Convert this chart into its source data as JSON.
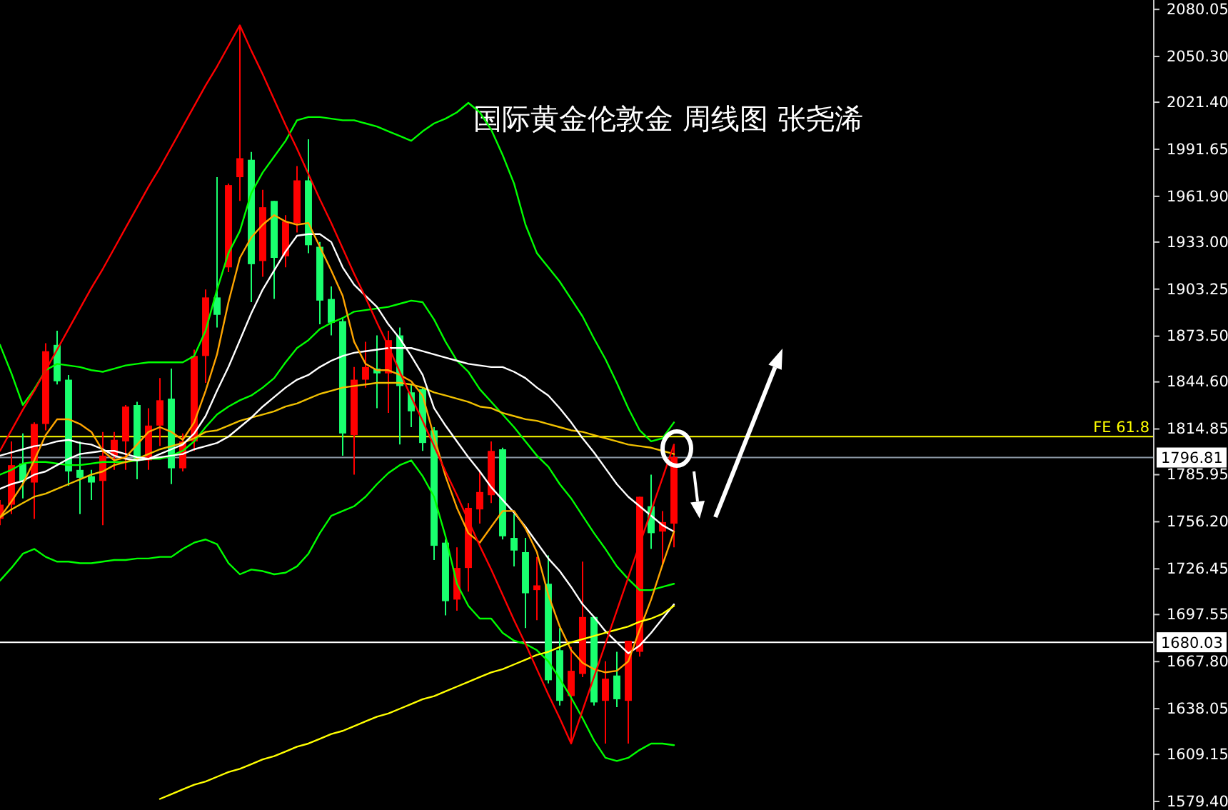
{
  "chart_data": {
    "type": "candlestick",
    "title": "国际黄金伦敦金 周线图 张尧浠",
    "categories": [
      null,
      null,
      null,
      null,
      null,
      null,
      null,
      null,
      null,
      null,
      null,
      null,
      null,
      null,
      null,
      null,
      null,
      null,
      null,
      null,
      null,
      null,
      null,
      null,
      null,
      null,
      null,
      null,
      null,
      null,
      null,
      null,
      null,
      null,
      null,
      null,
      null,
      null,
      null,
      null,
      null,
      null,
      null,
      null,
      null,
      null,
      null,
      null,
      null,
      null,
      null,
      null,
      null,
      null,
      null,
      null,
      null,
      null,
      null,
      null,
      null,
      null,
      null,
      null,
      null,
      null,
      null,
      null,
      null,
      null,
      null,
      null,
      null,
      null,
      null,
      null,
      null,
      null,
      null,
      null,
      null,
      null,
      null,
      null,
      null,
      null,
      null,
      null,
      null,
      null,
      null,
      null,
      null,
      null,
      null,
      null,
      null,
      null,
      null,
      null,
      null
    ],
    "ohlc": [
      [
        1758,
        1770,
        1754,
        1767
      ],
      [
        1767,
        1807,
        1761,
        1792
      ],
      [
        1793,
        1812,
        1771,
        1782
      ],
      [
        1781,
        1819,
        1758,
        1818
      ],
      [
        1818,
        1869,
        1814,
        1864
      ],
      [
        1868,
        1877,
        1843,
        1845
      ],
      [
        1846,
        1849,
        1779,
        1788
      ],
      [
        1789,
        1807,
        1761,
        1784
      ],
      [
        1785,
        1789,
        1770,
        1781
      ],
      [
        1782,
        1813,
        1754,
        1798
      ],
      [
        1798,
        1813,
        1789,
        1808
      ],
      [
        1807,
        1830,
        1789,
        1829
      ],
      [
        1830,
        1832,
        1783,
        1795
      ],
      [
        1795,
        1828,
        1789,
        1817
      ],
      [
        1817,
        1847,
        1804,
        1833
      ],
      [
        1834,
        1853,
        1780,
        1790
      ],
      [
        1790,
        1812,
        1788,
        1807
      ],
      [
        1807,
        1865,
        1801,
        1861
      ],
      [
        1861,
        1903,
        1844,
        1898
      ],
      [
        1898,
        1974,
        1879,
        1887
      ],
      [
        1917,
        1970,
        1914,
        1969
      ],
      [
        1974,
        2070,
        1959,
        1986
      ],
      [
        1985,
        1990,
        1895,
        1919
      ],
      [
        1921,
        1966,
        1911,
        1955
      ],
      [
        1959,
        1959,
        1897,
        1923
      ],
      [
        1924,
        1950,
        1917,
        1946
      ],
      [
        1945,
        1981,
        1939,
        1972
      ],
      [
        1972,
        1998,
        1926,
        1931
      ],
      [
        1930,
        1933,
        1881,
        1896
      ],
      [
        1897,
        1905,
        1874,
        1882
      ],
      [
        1883,
        1885,
        1798,
        1812
      ],
      [
        1811,
        1854,
        1786,
        1846
      ],
      [
        1846,
        1870,
        1841,
        1854
      ],
      [
        1853,
        1874,
        1828,
        1850
      ],
      [
        1850,
        1877,
        1825,
        1871
      ],
      [
        1874,
        1879,
        1805,
        1842
      ],
      [
        1838,
        1843,
        1816,
        1826
      ],
      [
        1840,
        1841,
        1801,
        1806
      ],
      [
        1814,
        1816,
        1732,
        1741
      ],
      [
        1743,
        1745,
        1697,
        1706
      ],
      [
        1707,
        1740,
        1700,
        1727
      ],
      [
        1727,
        1768,
        1712,
        1765
      ],
      [
        1764,
        1788,
        1755,
        1775
      ],
      [
        1773,
        1807,
        1768,
        1801
      ],
      [
        1802,
        1803,
        1745,
        1747
      ],
      [
        1746,
        1761,
        1728,
        1738
      ],
      [
        1737,
        1746,
        1689,
        1711
      ],
      [
        1713,
        1734,
        1694,
        1716
      ],
      [
        1717,
        1735,
        1654,
        1656
      ],
      [
        1675,
        1689,
        1640,
        1643
      ],
      [
        1646,
        1677,
        1616,
        1662
      ],
      [
        1660,
        1731,
        1658,
        1696
      ],
      [
        1696,
        1696,
        1640,
        1642
      ],
      [
        1643,
        1668,
        1616,
        1657
      ],
      [
        1659,
        1674,
        1639,
        1644
      ],
      [
        1643,
        1681,
        1616,
        1681
      ],
      [
        1674,
        1772,
        1671,
        1772
      ],
      [
        1766,
        1786,
        1739,
        1749
      ],
      [
        1750,
        1763,
        1728,
        1756
      ],
      [
        1755,
        1805,
        1740,
        1797
      ],
      null,
      null,
      null,
      null,
      null,
      null,
      null,
      null,
      null,
      null,
      null,
      null,
      null,
      null,
      null,
      null,
      null,
      null,
      null,
      null,
      null,
      null,
      null,
      null,
      null,
      null,
      null,
      null,
      null,
      null,
      null,
      null,
      null,
      null,
      null,
      null,
      null,
      null,
      null,
      null,
      null
    ],
    "colors": [
      "#ff0000",
      "#ff0000",
      "#19ff6e",
      "#ff0000",
      "#ff0000",
      "#19ff6e",
      "#19ff6e",
      "#19ff6e",
      "#19ff6e",
      "#ff0000",
      "#ff0000",
      "#ff0000",
      "#19ff6e",
      "#ff0000",
      "#ff0000",
      "#19ff6e",
      "#ff0000",
      "#ff0000",
      "#ff0000",
      "#19ff6e",
      "#ff0000",
      "#ff0000",
      "#19ff6e",
      "#ff0000",
      "#19ff6e",
      "#ff0000",
      "#ff0000",
      "#19ff6e",
      "#19ff6e",
      "#19ff6e",
      "#19ff6e",
      "#ff0000",
      "#ff0000",
      "#19ff6e",
      "#ff0000",
      "#19ff6e",
      "#19ff6e",
      "#19ff6e",
      "#19ff6e",
      "#19ff6e",
      "#ff0000",
      "#ff0000",
      "#ff0000",
      "#ff0000",
      "#19ff6e",
      "#19ff6e",
      "#19ff6e",
      "#ff0000",
      "#19ff6e",
      "#19ff6e",
      "#ff0000",
      "#ff0000",
      "#19ff6e",
      "#ff0000",
      "#19ff6e",
      "#ff0000",
      "#ff0000",
      "#19ff6e",
      "#ff0000",
      "#ff0000",
      null,
      null,
      null,
      null,
      null,
      null,
      null,
      null,
      null,
      null,
      null,
      null,
      null,
      null,
      null,
      null,
      null,
      null,
      null,
      null,
      null,
      null,
      null,
      null,
      null,
      null,
      null,
      null,
      null,
      null,
      null,
      null,
      null,
      null,
      null,
      null,
      null,
      null,
      null,
      null,
      null
    ],
    "ylim": [
      1574,
      2086
    ],
    "yticks": [
      {
        "value": 2080.05,
        "label": "2080.05"
      },
      {
        "value": 2050.3,
        "label": "2050.30"
      },
      {
        "value": 2021.4,
        "label": "2021.40"
      },
      {
        "value": 1991.65,
        "label": "1991.65"
      },
      {
        "value": 1961.9,
        "label": "1961.90"
      },
      {
        "value": 1933,
        "label": "1933.00"
      },
      {
        "value": 1903.25,
        "label": "1903.25"
      },
      {
        "value": 1873.5,
        "label": "1873.50"
      },
      {
        "value": 1844.6,
        "label": "1844.60"
      },
      {
        "value": 1814.85,
        "label": "1814.85"
      },
      {
        "value": 1785.95,
        "label": "1785.95"
      },
      {
        "value": 1756.2,
        "label": "1756.20"
      },
      {
        "value": 1726.45,
        "label": "1726.45"
      },
      {
        "value": 1697.55,
        "label": "1697.55"
      },
      {
        "value": 1667.8,
        "label": "1667.80"
      },
      {
        "value": 1638.05,
        "label": "1638.05"
      },
      {
        "value": 1609.15,
        "label": "1609.15"
      },
      {
        "value": 1579.4,
        "label": "1579.40"
      }
    ],
    "series": [
      {
        "type": "line",
        "color": "#00ff00",
        "values": [
          1868,
          1850,
          1830,
          1840,
          1852,
          1856,
          1855,
          1854,
          1852,
          1851,
          1853,
          1855,
          1856,
          1857,
          1857,
          1857,
          1857,
          1861,
          1877,
          1903,
          1926,
          1940,
          1964,
          1977,
          1987,
          1997,
          2010,
          2012,
          2012,
          2011,
          2010,
          2010,
          2008,
          2006,
          2003,
          2000,
          1997,
          2003,
          2008,
          2011,
          2015,
          2021,
          2015,
          2004,
          1988,
          1970,
          1944,
          1926,
          1917,
          1908,
          1897,
          1886,
          1872,
          1859,
          1844,
          1828,
          1814,
          1807,
          1809,
          1819,
          null,
          null,
          null,
          null,
          null,
          null,
          null,
          null,
          null,
          null,
          null,
          null,
          null,
          null,
          null,
          null,
          null,
          null,
          null,
          null,
          null,
          null,
          null,
          null,
          null,
          null,
          null,
          null,
          null,
          null,
          null,
          null,
          null,
          null,
          null,
          null,
          null,
          null,
          null,
          null,
          null
        ]
      },
      {
        "type": "line",
        "color": "#00ff00",
        "values": [
          1786,
          1789,
          1793,
          1794,
          1794,
          1793,
          1792,
          1792,
          1793,
          1794,
          1794,
          1794,
          1795,
          1796,
          1796,
          1798,
          1801,
          1807,
          1816,
          1824,
          1829,
          1833,
          1836,
          1841,
          1847,
          1857,
          1866,
          1871,
          1878,
          1882,
          1885,
          1889,
          1890,
          1891,
          1892,
          1894,
          1896,
          1895,
          1884,
          1870,
          1858,
          1851,
          1840,
          1832,
          1824,
          1816,
          1807,
          1798,
          1791,
          1780,
          1771,
          1760,
          1749,
          1739,
          1728,
          1720,
          1713,
          1713,
          1715,
          1717,
          null,
          null,
          null,
          null,
          null,
          null,
          null,
          null,
          null,
          null,
          null,
          null,
          null,
          null,
          null,
          null,
          null,
          null,
          null,
          null,
          null,
          null,
          null,
          null,
          null,
          null,
          null,
          null,
          null,
          null,
          null,
          null,
          null,
          null,
          null,
          null,
          null,
          null,
          null,
          null,
          null
        ]
      },
      {
        "type": "line",
        "color": "#00ff00",
        "values": [
          1719,
          1727,
          1736,
          1739,
          1734,
          1731,
          1731,
          1730,
          1730,
          1731,
          1732,
          1732,
          1733,
          1733,
          1734,
          1734,
          1739,
          1743,
          1745,
          1742,
          1730,
          1723,
          1726,
          1725,
          1723,
          1724,
          1728,
          1736,
          1749,
          1760,
          1763,
          1766,
          1772,
          1780,
          1787,
          1792,
          1795,
          1785,
          1772,
          1747,
          1717,
          1703,
          1695,
          1695,
          1686,
          1681,
          1679,
          1675,
          1668,
          1657,
          1645,
          1632,
          1618,
          1607,
          1605,
          1607,
          1612,
          1616,
          1616,
          1615,
          null,
          null,
          null,
          null,
          null,
          null,
          null,
          null,
          null,
          null,
          null,
          null,
          null,
          null,
          null,
          null,
          null,
          null,
          null,
          null,
          null,
          null,
          null,
          null,
          null,
          null,
          null,
          null,
          null,
          null,
          null,
          null,
          null,
          null,
          null,
          null,
          null,
          null,
          null,
          null,
          null
        ]
      },
      {
        "type": "line",
        "color": "#f0c000",
        "values": [
          1759,
          1764,
          1768,
          1772,
          1774,
          1777,
          1780,
          1783,
          1786,
          1788,
          1792,
          1794,
          1796,
          1799,
          1802,
          1804,
          1806,
          1809,
          1813,
          1814,
          1817,
          1820,
          1822,
          1824,
          1826,
          1829,
          1831,
          1834,
          1837,
          1839,
          1841,
          1842,
          1843,
          1844,
          1844,
          1844,
          1843,
          1841,
          1838,
          1836,
          1834,
          1832,
          1829,
          1828,
          1825,
          1823,
          1821,
          1820,
          1818,
          1816,
          1814,
          1813,
          1811,
          1809,
          1807,
          1805,
          1804,
          1803,
          1801,
          1799,
          null,
          null,
          null,
          null,
          null,
          null,
          null,
          null,
          null,
          null,
          null,
          null,
          null,
          null,
          null,
          null,
          null,
          null,
          null,
          null,
          null,
          null,
          null,
          null,
          null,
          null,
          null,
          null,
          null,
          null,
          null,
          null,
          null,
          null,
          null,
          null,
          null,
          null,
          null,
          null,
          null
        ]
      },
      {
        "type": "line",
        "color": "#ffffff",
        "values": [
          1777,
          1780,
          1782,
          1786,
          1788,
          1792,
          1796,
          1799,
          1800,
          1801,
          1801,
          1799,
          1797,
          1796,
          1797,
          1798,
          1799,
          1802,
          1804,
          1806,
          1810,
          1816,
          1822,
          1829,
          1835,
          1841,
          1846,
          1849,
          1854,
          1858,
          1861,
          1863,
          1864,
          1865,
          1866,
          1866,
          1866,
          1864,
          1862,
          1860,
          1858,
          1856,
          1855,
          1854,
          1854,
          1851,
          1847,
          1841,
          1836,
          1828,
          1819,
          1809,
          1800,
          1790,
          1780,
          1772,
          1766,
          1760,
          1754,
          1750,
          null,
          null,
          null,
          null,
          null,
          null,
          null,
          null,
          null,
          null,
          null,
          null,
          null,
          null,
          null,
          null,
          null,
          null,
          null,
          null,
          null,
          null,
          null,
          null,
          null,
          null,
          null,
          null,
          null,
          null,
          null,
          null,
          null,
          null,
          null,
          null,
          null,
          null,
          null,
          null,
          null
        ]
      },
      {
        "type": "line",
        "color": "#ffffff",
        "values": [
          1798,
          1800,
          1802,
          1804,
          1805,
          1807,
          1808,
          1806,
          1805,
          1802,
          1798,
          1796,
          1795,
          1796,
          1799,
          1802,
          1805,
          1812,
          1823,
          1839,
          1854,
          1871,
          1888,
          1903,
          1915,
          1927,
          1937,
          1938,
          1938,
          1933,
          1917,
          1906,
          1899,
          1892,
          1881,
          1872,
          1861,
          1849,
          1828,
          1817,
          1807,
          1797,
          1788,
          1778,
          1770,
          1762,
          1753,
          1743,
          1733,
          1725,
          1715,
          1704,
          1696,
          1687,
          1680,
          1673,
          1678,
          1686,
          1695,
          1704,
          null,
          null,
          null,
          null,
          null,
          null,
          null,
          null,
          null,
          null,
          null,
          null,
          null,
          null,
          null,
          null,
          null,
          null,
          null,
          null,
          null,
          null,
          null,
          null,
          null,
          null,
          null,
          null,
          null,
          null,
          null,
          null,
          null,
          null,
          null,
          null,
          null,
          null,
          null,
          null,
          null
        ]
      },
      {
        "type": "line",
        "color": "#ffa500",
        "values": [
          1759,
          1769,
          1780,
          1795,
          1811,
          1821,
          1821,
          1818,
          1813,
          1801,
          1795,
          1797,
          1805,
          1813,
          1816,
          1813,
          1808,
          1819,
          1839,
          1862,
          1895,
          1923,
          1936,
          1944,
          1950,
          1946,
          1944,
          1945,
          1930,
          1915,
          1899,
          1870,
          1856,
          1852,
          1852,
          1849,
          1845,
          1836,
          1810,
          1785,
          1765,
          1749,
          1743,
          1753,
          1763,
          1763,
          1752,
          1737,
          1710,
          1690,
          1675,
          1667,
          1663,
          1661,
          1662,
          1668,
          1688,
          1707,
          1729,
          1750,
          null,
          null,
          null,
          null,
          null,
          null,
          null,
          null,
          null,
          null,
          null,
          null,
          null,
          null,
          null,
          null,
          null,
          null,
          null,
          null,
          null,
          null,
          null,
          null,
          null,
          null,
          null,
          null,
          null,
          null,
          null,
          null,
          null,
          null,
          null,
          null,
          null,
          null,
          null,
          null,
          null
        ]
      },
      {
        "type": "line",
        "color": "#ffff00",
        "values": [
          null,
          null,
          null,
          null,
          null,
          null,
          null,
          null,
          null,
          null,
          null,
          null,
          null,
          null,
          1581,
          1584,
          1587,
          1590,
          1592,
          1595,
          1598,
          1600,
          1603,
          1606,
          1608,
          1611,
          1614,
          1616,
          1619,
          1622,
          1624,
          1627,
          1630,
          1633,
          1635,
          1638,
          1641,
          1644,
          1646,
          1649,
          1652,
          1655,
          1658,
          1661,
          1663,
          1666,
          1669,
          1672,
          1674,
          1677,
          1680,
          1682,
          1684,
          1686,
          1688,
          1690,
          1693,
          1695,
          1698,
          1703,
          null,
          null,
          null,
          null,
          null,
          null,
          null,
          null,
          null,
          null,
          null,
          null,
          null,
          null,
          null,
          null,
          null,
          null,
          null,
          null,
          null,
          null,
          null,
          null,
          null,
          null,
          null,
          null,
          null,
          null,
          null,
          null,
          null,
          null,
          null,
          null,
          null,
          null,
          null,
          null,
          null
        ]
      },
      {
        "type": "line",
        "color": "#ff0000",
        "values": [
          1801,
          1814,
          1827,
          1839,
          1852,
          1865,
          1878,
          1891,
          1904,
          1916,
          1929,
          1942,
          1955,
          1968,
          1980,
          1993,
          2006,
          2019,
          2032,
          2044,
          2057,
          2070,
          2054,
          2039,
          2023,
          2007,
          1992,
          1976,
          1960,
          1945,
          1929,
          1913,
          1898,
          1882,
          1867,
          1851,
          1835,
          1820,
          1804,
          1788,
          1773,
          1757,
          1741,
          1726,
          1710,
          1694,
          1679,
          1663,
          1647,
          1632,
          1616,
          1637,
          1658,
          1679,
          1700,
          1721,
          1742,
          1763,
          1784,
          1805,
          null,
          null,
          null,
          null,
          null,
          null,
          null,
          null,
          null,
          null,
          null,
          null,
          null,
          null,
          null,
          null,
          null,
          null,
          null,
          null,
          null,
          null,
          null,
          null,
          null,
          null,
          null,
          null,
          null,
          null,
          null,
          null,
          null,
          null,
          null,
          null,
          null,
          null,
          null,
          null,
          null
        ]
      }
    ],
    "ref_lines": [
      {
        "axis": "y",
        "value": 1810,
        "label": "FE 61.8",
        "color": "#ffff00"
      },
      {
        "axis": "y",
        "value": 1796.81,
        "label": "1796.81",
        "color": "#8a96a3"
      },
      {
        "axis": "y",
        "value": 1680.03,
        "label": "1680.03",
        "color": "#ffffff"
      }
    ]
  }
}
